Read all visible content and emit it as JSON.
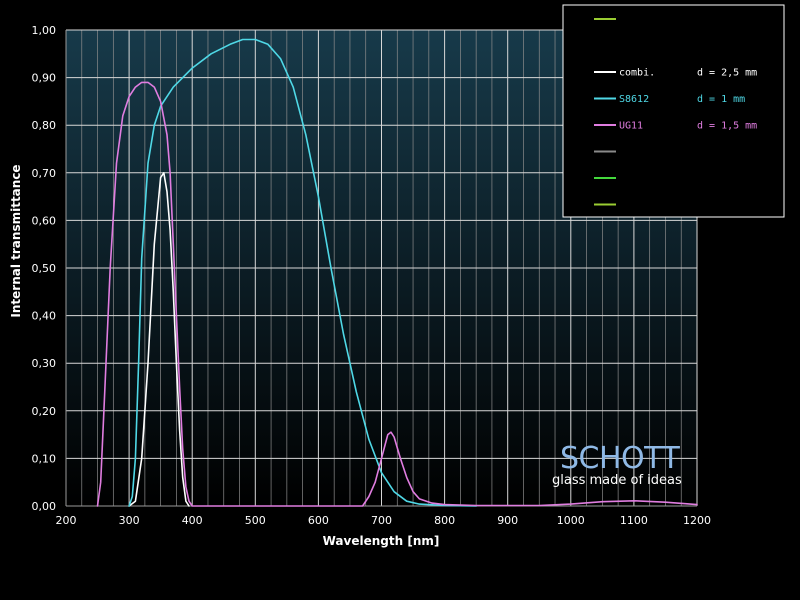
{
  "chart_data": {
    "type": "line",
    "xlabel": "Wavelength [nm]",
    "ylabel": "Internal transmittance",
    "xlim": [
      200,
      1200
    ],
    "ylim": [
      0,
      1
    ],
    "x_ticks": [
      200,
      300,
      400,
      500,
      600,
      700,
      800,
      900,
      1000,
      1100,
      1200
    ],
    "y_ticks": [
      "0,00",
      "0,10",
      "0,20",
      "0,30",
      "0,40",
      "0,50",
      "0,60",
      "0,70",
      "0,80",
      "0,90",
      "1,00"
    ],
    "grid": true,
    "legend_position": "top-right",
    "series": [
      {
        "name": "combi.",
        "thickness": "d = 2,5 mm",
        "color": "#ffffff",
        "points": [
          [
            300,
            0
          ],
          [
            310,
            0.01
          ],
          [
            320,
            0.1
          ],
          [
            330,
            0.3
          ],
          [
            340,
            0.55
          ],
          [
            350,
            0.69
          ],
          [
            355,
            0.7
          ],
          [
            360,
            0.66
          ],
          [
            365,
            0.58
          ],
          [
            370,
            0.45
          ],
          [
            375,
            0.3
          ],
          [
            380,
            0.16
          ],
          [
            385,
            0.06
          ],
          [
            390,
            0.01
          ],
          [
            395,
            0
          ]
        ]
      },
      {
        "name": "S8612",
        "thickness": "d = 1 mm",
        "color": "#4fd8e6",
        "points": [
          [
            300,
            0
          ],
          [
            305,
            0.02
          ],
          [
            310,
            0.1
          ],
          [
            315,
            0.3
          ],
          [
            320,
            0.52
          ],
          [
            330,
            0.72
          ],
          [
            340,
            0.8
          ],
          [
            350,
            0.84
          ],
          [
            370,
            0.88
          ],
          [
            400,
            0.92
          ],
          [
            430,
            0.95
          ],
          [
            460,
            0.97
          ],
          [
            480,
            0.98
          ],
          [
            500,
            0.98
          ],
          [
            520,
            0.97
          ],
          [
            540,
            0.94
          ],
          [
            560,
            0.88
          ],
          [
            580,
            0.78
          ],
          [
            600,
            0.65
          ],
          [
            620,
            0.5
          ],
          [
            640,
            0.36
          ],
          [
            660,
            0.24
          ],
          [
            680,
            0.14
          ],
          [
            700,
            0.07
          ],
          [
            720,
            0.03
          ],
          [
            740,
            0.01
          ],
          [
            760,
            0.004
          ],
          [
            800,
            0.001
          ],
          [
            850,
            0
          ]
        ]
      },
      {
        "name": "UG11",
        "thickness": "d = 1,5 mm",
        "color": "#e07de0",
        "points": [
          [
            250,
            0
          ],
          [
            255,
            0.05
          ],
          [
            260,
            0.2
          ],
          [
            270,
            0.5
          ],
          [
            280,
            0.72
          ],
          [
            290,
            0.82
          ],
          [
            300,
            0.86
          ],
          [
            310,
            0.88
          ],
          [
            320,
            0.89
          ],
          [
            330,
            0.89
          ],
          [
            340,
            0.88
          ],
          [
            350,
            0.85
          ],
          [
            360,
            0.78
          ],
          [
            365,
            0.7
          ],
          [
            370,
            0.55
          ],
          [
            375,
            0.4
          ],
          [
            380,
            0.25
          ],
          [
            385,
            0.12
          ],
          [
            390,
            0.04
          ],
          [
            395,
            0.01
          ],
          [
            400,
            0
          ],
          [
            670,
            0
          ],
          [
            680,
            0.02
          ],
          [
            690,
            0.05
          ],
          [
            700,
            0.1
          ],
          [
            710,
            0.15
          ],
          [
            715,
            0.155
          ],
          [
            720,
            0.145
          ],
          [
            730,
            0.1
          ],
          [
            740,
            0.06
          ],
          [
            750,
            0.03
          ],
          [
            760,
            0.015
          ],
          [
            780,
            0.006
          ],
          [
            800,
            0.003
          ],
          [
            850,
            0.001
          ],
          [
            950,
            0.001
          ],
          [
            1000,
            0.004
          ],
          [
            1050,
            0.009
          ],
          [
            1100,
            0.011
          ],
          [
            1150,
            0.008
          ],
          [
            1200,
            0.003
          ]
        ]
      },
      {
        "name": "",
        "thickness": "",
        "color": "#8a8a8a",
        "points": []
      },
      {
        "name": "",
        "thickness": "",
        "color": "#44d83c",
        "points": []
      },
      {
        "name": "",
        "thickness": "",
        "color": "#9acd32",
        "points": []
      }
    ],
    "legend_extra_top_color": "#9acd32"
  },
  "logo": {
    "brand": "SCHOTT",
    "tagline": "glass made of ideas"
  }
}
